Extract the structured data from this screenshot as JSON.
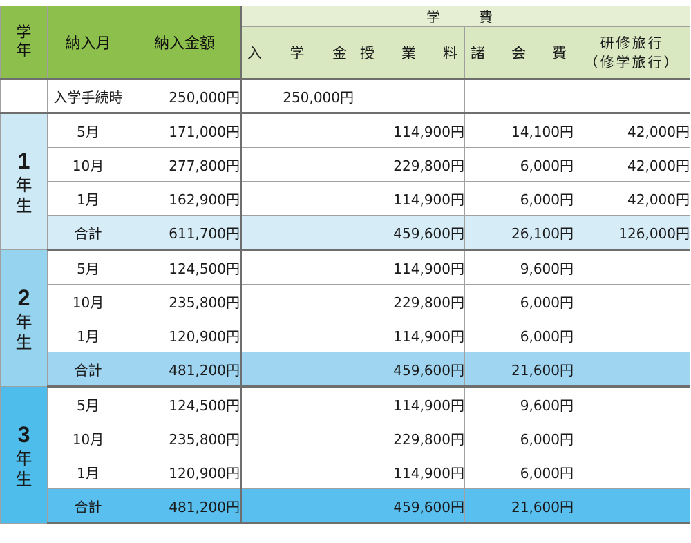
{
  "header": {
    "grade": "学\n年",
    "grade_top": "学",
    "grade_bottom": "年",
    "month": "納入月",
    "amount": "納入金額",
    "fees_group": "学　費",
    "admission": [
      "入",
      "学",
      "金"
    ],
    "tuition": [
      "授",
      "業",
      "料"
    ],
    "misc": [
      "諸",
      "会",
      "費"
    ],
    "trip_line1": "研修旅行",
    "trip_line2": "（修学旅行）"
  },
  "entry_row": {
    "month": "入学手続時",
    "amount": "250,000円",
    "admission": "250,000円"
  },
  "grades": [
    {
      "number": "1",
      "label_a": "年",
      "label_b": "生",
      "rows": [
        {
          "month": "5月",
          "amount": "171,000円",
          "admission": "",
          "tuition": "114,900円",
          "misc": "14,100円",
          "trip": "42,000円"
        },
        {
          "month": "10月",
          "amount": "277,800円",
          "admission": "",
          "tuition": "229,800円",
          "misc": "6,000円",
          "trip": "42,000円"
        },
        {
          "month": "1月",
          "amount": "162,900円",
          "admission": "",
          "tuition": "114,900円",
          "misc": "6,000円",
          "trip": "42,000円"
        }
      ],
      "total": {
        "month": "合計",
        "amount": "611,700円",
        "admission": "",
        "tuition": "459,600円",
        "misc": "26,100円",
        "trip": "126,000円"
      }
    },
    {
      "number": "2",
      "label_a": "年",
      "label_b": "生",
      "rows": [
        {
          "month": "5月",
          "amount": "124,500円",
          "admission": "",
          "tuition": "114,900円",
          "misc": "9,600円",
          "trip": ""
        },
        {
          "month": "10月",
          "amount": "235,800円",
          "admission": "",
          "tuition": "229,800円",
          "misc": "6,000円",
          "trip": ""
        },
        {
          "month": "1月",
          "amount": "120,900円",
          "admission": "",
          "tuition": "114,900円",
          "misc": "6,000円",
          "trip": ""
        }
      ],
      "total": {
        "month": "合計",
        "amount": "481,200円",
        "admission": "",
        "tuition": "459,600円",
        "misc": "21,600円",
        "trip": ""
      }
    },
    {
      "number": "3",
      "label_a": "年",
      "label_b": "生",
      "rows": [
        {
          "month": "5月",
          "amount": "124,500円",
          "admission": "",
          "tuition": "114,900円",
          "misc": "9,600円",
          "trip": ""
        },
        {
          "month": "10月",
          "amount": "235,800円",
          "admission": "",
          "tuition": "229,800円",
          "misc": "6,000円",
          "trip": ""
        },
        {
          "month": "1月",
          "amount": "120,900円",
          "admission": "",
          "tuition": "114,900円",
          "misc": "6,000円",
          "trip": ""
        }
      ],
      "total": {
        "month": "合計",
        "amount": "481,200円",
        "admission": "",
        "tuition": "459,600円",
        "misc": "21,600円",
        "trip": ""
      }
    }
  ],
  "colors": {
    "header_green": "#8dbf4d",
    "header_light": "#d9e8c1",
    "grade1": "#cde9f6",
    "grade2": "#95d3ef",
    "grade3": "#4fbdeb"
  }
}
